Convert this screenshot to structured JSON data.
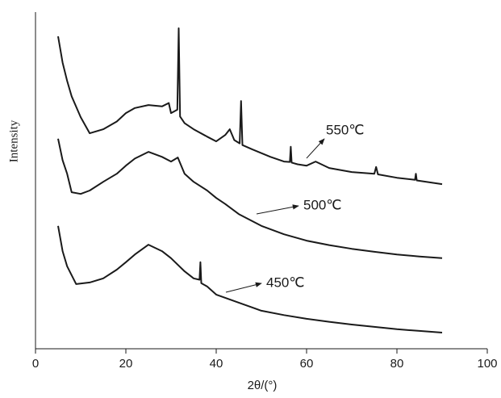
{
  "chart_data": {
    "type": "line",
    "xlabel": "2θ/(°)",
    "ylabel": "Intensity",
    "xlim": [
      0,
      100
    ],
    "xticks": [
      0,
      20,
      40,
      60,
      80,
      100
    ],
    "ylim": [
      0,
      100
    ],
    "annotations": [
      "550℃",
      "500℃",
      "450℃"
    ],
    "series": [
      {
        "name": "550℃",
        "color": "#1a1a1a",
        "x": [
          5,
          6,
          7,
          8,
          10,
          12,
          15,
          18,
          20,
          22,
          25,
          28,
          29.5,
          30,
          31.4,
          31.7,
          32,
          33,
          35,
          38,
          40,
          42,
          43,
          44,
          45.2,
          45.5,
          45.8,
          48,
          52,
          55,
          56.3,
          56.5,
          56.7,
          58,
          60,
          62,
          65,
          70,
          75,
          75.4,
          75.8,
          80,
          84,
          84.2,
          84.4,
          90
        ],
        "values": [
          92.8,
          85,
          79.6,
          75,
          68.8,
          64,
          65.2,
          67.5,
          70,
          71.5,
          72.4,
          72,
          73,
          70,
          71,
          95.2,
          69,
          67,
          65.2,
          63,
          61.6,
          63.5,
          65.2,
          62,
          61,
          73.6,
          60.5,
          59.2,
          57,
          55.6,
          55.5,
          60,
          55.3,
          54.8,
          54.4,
          55.6,
          53.7,
          52.5,
          52,
          54,
          51.8,
          50.8,
          50.2,
          52,
          50,
          48.9
        ]
      },
      {
        "name": "500℃",
        "color": "#1a1a1a",
        "x": [
          5,
          6,
          7,
          8,
          10,
          12,
          15,
          18,
          20,
          22,
          25,
          28,
          30,
          31.5,
          33,
          35,
          38,
          40,
          42,
          45,
          50,
          55,
          60,
          65,
          70,
          75,
          80,
          85,
          90
        ],
        "values": [
          62.4,
          56,
          52,
          46.5,
          46,
          47,
          49.6,
          52,
          54.4,
          56.5,
          58.5,
          57,
          55.6,
          56.8,
          52,
          49.6,
          47,
          44.8,
          43,
          40,
          36.5,
          34,
          32.1,
          30.8,
          29.7,
          28.8,
          28,
          27.4,
          26.9
        ]
      },
      {
        "name": "450℃",
        "color": "#1a1a1a",
        "x": [
          5,
          6,
          7,
          9,
          12,
          15,
          18,
          20,
          22,
          25,
          28,
          30,
          33,
          35,
          36.3,
          36.5,
          36.7,
          38,
          40,
          45,
          50,
          55,
          60,
          65,
          70,
          75,
          80,
          85,
          90
        ],
        "values": [
          36.5,
          29,
          24.5,
          19.2,
          19.7,
          20.9,
          23.5,
          25.7,
          28,
          30.9,
          29,
          26.9,
          23,
          20.9,
          20.5,
          25.7,
          19.5,
          18.5,
          16.1,
          13.7,
          11.3,
          10,
          8.9,
          8,
          7.2,
          6.5,
          5.8,
          5.3,
          4.8
        ]
      }
    ]
  }
}
